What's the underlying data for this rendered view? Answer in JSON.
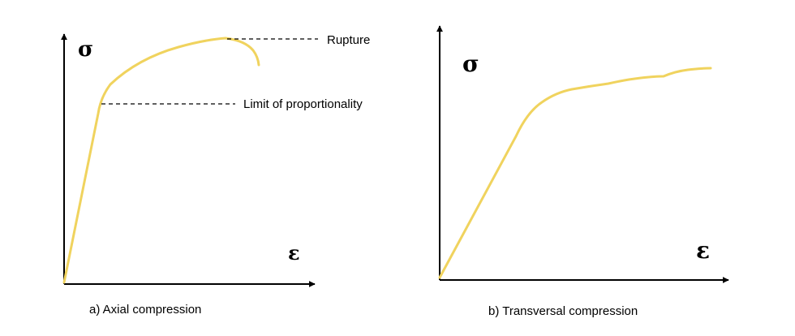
{
  "colors": {
    "curve": "#f0d35e",
    "axis": "#000000"
  },
  "panel_a": {
    "y_symbol": "σ",
    "x_symbol": "ε",
    "rupture_label": "Rupture",
    "limit_label": "Limit of proportionality",
    "caption": "a) Axial compression"
  },
  "panel_b": {
    "y_symbol": "σ",
    "x_symbol": "ε",
    "caption": "b) Transversal compression"
  }
}
